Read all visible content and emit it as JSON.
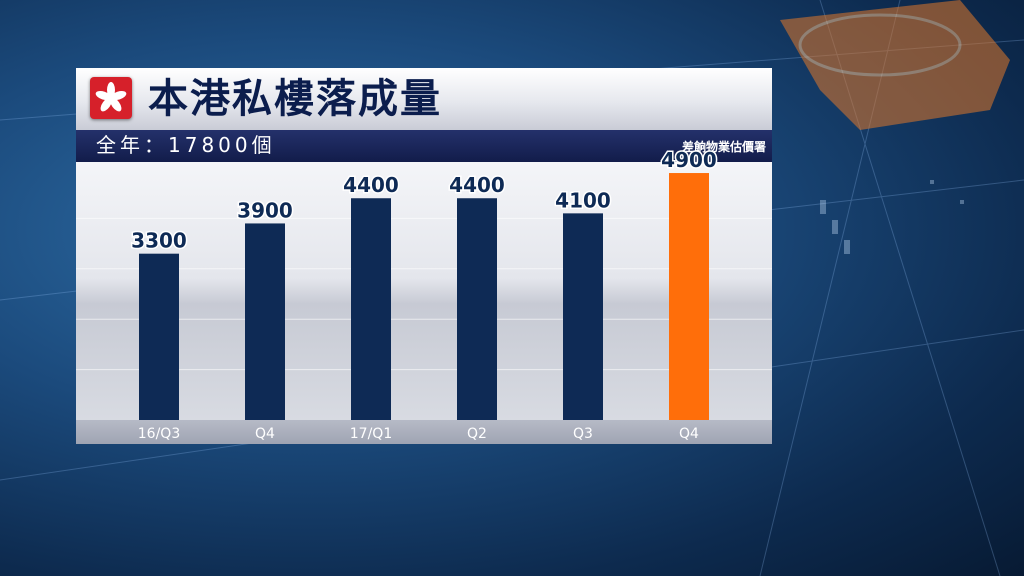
{
  "header": {
    "title": "本港私樓落成量",
    "subtitle": "全年：17800個",
    "source": "差餉物業估價署"
  },
  "colors": {
    "bar": "#0e2a55",
    "highlight": "#ff6e0a",
    "label": "#0e2a55"
  },
  "icons": {
    "flag": "hong-kong-flag-icon"
  },
  "chart_data": {
    "type": "bar",
    "categories": [
      "16/Q3",
      "Q4",
      "17/Q1",
      "Q2",
      "Q3",
      "Q4"
    ],
    "values": [
      3300,
      3900,
      4400,
      4400,
      4100,
      4900
    ],
    "highlight_index": 5,
    "title": "本港私樓落成量",
    "subtitle": "全年：17800個",
    "ylim": [
      0,
      5000
    ],
    "grid": true,
    "legend": "none"
  }
}
